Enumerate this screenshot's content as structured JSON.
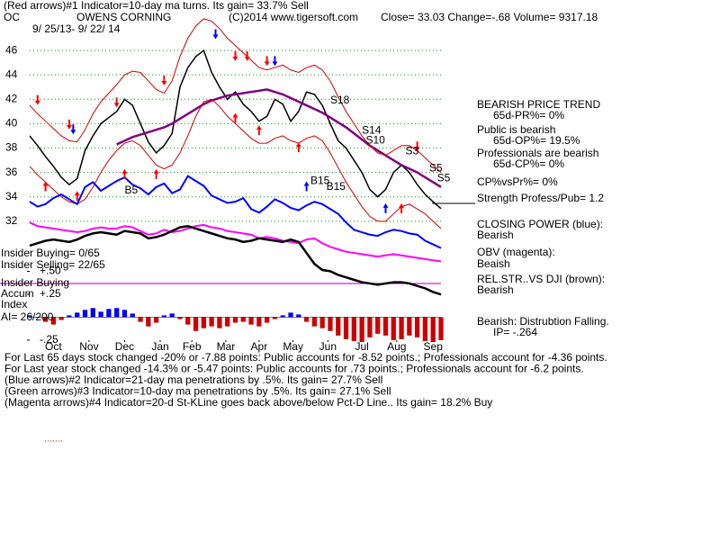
{
  "chart_data": {
    "type": "line",
    "title": "(Red arrows)#1 Indicator=10-day ma turns. Its gain= 33.7% Sell",
    "symbol": "OC",
    "company": "OWENS CORNING",
    "copyright": "(C)2014 www.tigersoft.com",
    "quote": "Close=  33.03  Change=-.68 Volume= 9317.18",
    "date_range": "9/ 25/13- 9/ 22/ 14",
    "xlim": [
      0,
      52
    ],
    "xticks": [
      {
        "value": 3,
        "label": "Oct"
      },
      {
        "value": 7.5,
        "label": "Nov"
      },
      {
        "value": 12,
        "label": "Dec"
      },
      {
        "value": 16.5,
        "label": "Jan"
      },
      {
        "value": 20.5,
        "label": "Feb"
      },
      {
        "value": 24.8,
        "label": "Mar"
      },
      {
        "value": 29,
        "label": "Apr"
      },
      {
        "value": 33.3,
        "label": "May"
      },
      {
        "value": 37.7,
        "label": "Jun"
      },
      {
        "value": 42,
        "label": "Jul"
      },
      {
        "value": 46.4,
        "label": "Aug"
      },
      {
        "value": 51,
        "label": "Sep"
      }
    ],
    "ylim": [
      22.1,
      49.4
    ],
    "yticks": [
      32,
      34,
      36,
      38,
      40,
      42,
      44,
      46
    ],
    "grid": true,
    "grid_color": "#00a000",
    "series": [
      {
        "color": "#000000",
        "width": 1.5,
        "values": [
          39,
          38.2,
          37.3,
          36.5,
          35.6,
          35,
          35.5,
          37.8,
          39,
          40,
          40.5,
          41,
          42,
          41.5,
          40,
          38.5,
          37.6,
          38.2,
          39.2,
          43,
          44.6,
          45.5,
          46,
          44.2,
          43,
          42,
          42.6,
          41.6,
          41,
          40.2,
          40.6,
          42,
          41.6,
          40.2,
          41,
          42.6,
          42.4,
          41.5,
          40,
          38.6,
          38,
          37,
          36,
          34.6,
          34,
          34.6,
          36,
          36.6,
          36,
          35,
          34.2,
          33.6,
          33.03
        ]
      },
      {
        "color": "#800080",
        "width": 2.5,
        "values": [
          null,
          null,
          null,
          null,
          null,
          null,
          null,
          null,
          null,
          null,
          null,
          38.3,
          38.6,
          38.9,
          39.1,
          39.3,
          39.5,
          39.7,
          40,
          40.4,
          40.8,
          41.2,
          41.6,
          41.9,
          42.1,
          42.3,
          42.4,
          42.5,
          42.6,
          42.7,
          42.8,
          42.6,
          42.4,
          42.1,
          41.8,
          41.5,
          41.2,
          40.9,
          40.5,
          40.1,
          39.7,
          39.2,
          38.7,
          38.2,
          37.8,
          37.4,
          37,
          36.6,
          36.3,
          36,
          35.6,
          35.2,
          34.8
        ]
      },
      {
        "color": "#cc0000",
        "width": 1,
        "values": [
          41.5,
          40.8,
          40.2,
          39.6,
          39,
          38.6,
          38.5,
          39.5,
          40.8,
          41.8,
          42.5,
          43.2,
          44,
          44.3,
          44.2,
          43.5,
          42.8,
          42.5,
          43.5,
          45.5,
          47,
          48,
          48.6,
          48.4,
          47.8,
          47,
          46.4,
          45.8,
          45.2,
          44.6,
          44.4,
          44.6,
          44.8,
          44.4,
          44.2,
          44.6,
          44.8,
          44.4,
          43.5,
          42.2,
          41,
          40,
          39,
          38.2,
          37.6,
          37.4,
          37.8,
          38.2,
          38.2,
          37.8,
          37.2,
          36.6,
          36
        ]
      },
      {
        "color": "#cc0000",
        "width": 1,
        "values": [
          36.5,
          35.8,
          35.2,
          34.6,
          34,
          33.6,
          33.4,
          33.8,
          34.8,
          36,
          37,
          37.8,
          38.4,
          38.6,
          38.2,
          37.4,
          36.6,
          36.3,
          36.6,
          37.6,
          39,
          40.6,
          41.8,
          42,
          41.4,
          40.6,
          40,
          39.4,
          38.8,
          38.4,
          38.4,
          38.8,
          39,
          38.6,
          38.4,
          38.8,
          39,
          38.6,
          37.6,
          36.4,
          35.2,
          34.2,
          33.2,
          32.4,
          32,
          32,
          32.6,
          33.2,
          33.4,
          33,
          32.6,
          32,
          31.4
        ]
      },
      {
        "color": "#0000ff",
        "width": 2,
        "values": [
          33.6,
          33.2,
          33.4,
          33.9,
          34.2,
          33.8,
          33.4,
          34.8,
          35.2,
          34.5,
          34.9,
          35.3,
          35.6,
          35,
          34.7,
          34.2,
          34.8,
          35.1,
          34.3,
          34.6,
          35.7,
          35.3,
          34.9,
          34.1,
          33.8,
          33.5,
          33.6,
          33.9,
          33,
          32.7,
          33.2,
          33.8,
          33.5,
          33.1,
          32.9,
          33.3,
          33.6,
          33.4,
          33,
          32.6,
          31.9,
          31.3,
          31.1,
          30.9,
          30.8,
          31.1,
          31.3,
          31.2,
          31,
          30.9,
          30.4,
          30.1,
          29.8
        ]
      },
      {
        "color": "#ff00ff",
        "width": 2,
        "values": [
          31.9,
          31.6,
          31.5,
          31.4,
          31.3,
          31.2,
          31.1,
          31.2,
          31.4,
          31.5,
          31.4,
          31.4,
          31.6,
          31.5,
          31.2,
          30.9,
          31,
          31.3,
          31.1,
          31.2,
          31.4,
          31.6,
          31.7,
          31.5,
          31.4,
          31.2,
          31.1,
          31,
          30.9,
          30.6,
          30.7,
          30.6,
          30.4,
          30.3,
          30.2,
          30.5,
          30.6,
          30.2,
          29.9,
          29.7,
          29.5,
          29.4,
          29.3,
          29.2,
          29.1,
          29.2,
          29.3,
          29.2,
          29.1,
          29,
          28.9,
          28.8,
          28.7
        ]
      },
      {
        "color": "#000000",
        "width": 2.5,
        "values": [
          30,
          30.2,
          30.4,
          30.5,
          30.4,
          30.3,
          30.5,
          30.8,
          31,
          31.1,
          31,
          30.9,
          31.2,
          31.1,
          31,
          30.6,
          30.7,
          30.9,
          31.2,
          31.5,
          31.6,
          31.4,
          31.2,
          31,
          30.8,
          30.6,
          30.5,
          30.3,
          30.4,
          30.6,
          30.5,
          30.4,
          30.3,
          30.5,
          30.3,
          29.4,
          28.5,
          28,
          27.9,
          27.6,
          27.4,
          27.2,
          27,
          26.9,
          26.8,
          26.9,
          27,
          27,
          26.9,
          26.7,
          26.5,
          26.2,
          26
        ]
      }
    ],
    "accum": {
      "axis": "y2",
      "pos_color": "#0000ff",
      "neg_color": "#cc0000",
      "values": [
        0.02,
        0,
        -0.05,
        -0.08,
        -0.03,
        0.02,
        0.05,
        0.08,
        0.1,
        0.06,
        0.09,
        0.1,
        0.08,
        0.04,
        -0.05,
        -0.1,
        -0.06,
        0.02,
        0.04,
        -0.02,
        -0.08,
        -0.15,
        -0.12,
        -0.1,
        -0.12,
        -0.1,
        -0.06,
        -0.05,
        -0.08,
        -0.1,
        -0.06,
        -0.02,
        0.02,
        0.05,
        0.03,
        -0.05,
        -0.1,
        -0.12,
        -0.15,
        -0.2,
        -0.24,
        -0.26,
        -0.27,
        -0.22,
        -0.18,
        -0.2,
        -0.25,
        -0.24,
        -0.2,
        -0.22,
        -0.26,
        -0.27,
        -0.25
      ]
    },
    "y2lim": [
      -0.27,
      3.358
    ],
    "y2ticks": [
      {
        "value": 0.5,
        "label": "+.50"
      },
      {
        "value": 0.25,
        "label": "+.25"
      },
      {
        "value": -0.25,
        "label": "-.25"
      }
    ],
    "arrows": [
      {
        "x": 1,
        "y": 41.6,
        "dir": "down",
        "color": "#ff0000"
      },
      {
        "x": 5,
        "y": 39.6,
        "dir": "down",
        "color": "#ff0000"
      },
      {
        "x": 11,
        "y": 41.4,
        "dir": "down",
        "color": "#ff0000"
      },
      {
        "x": 17,
        "y": 43.2,
        "dir": "down",
        "color": "#ff0000"
      },
      {
        "x": 26,
        "y": 45.2,
        "dir": "down",
        "color": "#ff0000"
      },
      {
        "x": 27.5,
        "y": 45.2,
        "dir": "down",
        "color": "#ff0000"
      },
      {
        "x": 30,
        "y": 44.8,
        "dir": "down",
        "color": "#ff0000"
      },
      {
        "x": 49,
        "y": 37.8,
        "dir": "down",
        "color": "#ff0000"
      },
      {
        "x": 2,
        "y": 35.2,
        "dir": "up",
        "color": "#ff0000"
      },
      {
        "x": 6,
        "y": 34.4,
        "dir": "up",
        "color": "#ff0000"
      },
      {
        "x": 12,
        "y": 36.2,
        "dir": "up",
        "color": "#ff0000"
      },
      {
        "x": 16,
        "y": 36.2,
        "dir": "up",
        "color": "#ff0000"
      },
      {
        "x": 26,
        "y": 40.8,
        "dir": "up",
        "color": "#ff0000"
      },
      {
        "x": 29,
        "y": 39.8,
        "dir": "up",
        "color": "#ff0000"
      },
      {
        "x": 34,
        "y": 38.4,
        "dir": "up",
        "color": "#ff0000"
      },
      {
        "x": 47,
        "y": 33.4,
        "dir": "up",
        "color": "#ff0000"
      },
      {
        "x": 5.5,
        "y": 39.2,
        "dir": "down",
        "color": "#0000ff"
      },
      {
        "x": 23.5,
        "y": 47,
        "dir": "down",
        "color": "#0000ff"
      },
      {
        "x": 31,
        "y": 44.8,
        "dir": "down",
        "color": "#0000ff"
      },
      {
        "x": 35,
        "y": 35.2,
        "dir": "up",
        "color": "#0000ff"
      },
      {
        "x": 45,
        "y": 33.4,
        "dir": "up",
        "color": "#0000ff"
      }
    ],
    "annotations": [
      {
        "text": "S18",
        "x": 38,
        "y": 41.9
      },
      {
        "text": "S14",
        "x": 42,
        "y": 39.4
      },
      {
        "text": "S10",
        "x": 42.5,
        "y": 38.6
      },
      {
        "text": "S3",
        "x": 47.5,
        "y": 37.7
      },
      {
        "text": "S5",
        "x": 50.5,
        "y": 36.3
      },
      {
        "text": "S5",
        "x": 51.5,
        "y": 35.5
      },
      {
        "text": "B15",
        "x": 35.5,
        "y": 35.3
      },
      {
        "text": "B15",
        "x": 37.5,
        "y": 34.8
      },
      {
        "text": "B5",
        "x": 12,
        "y": 34.5
      }
    ],
    "insider": [
      "Insider Buying= 0/65",
      "Insider Selling= 22/65",
      "Insider Buying"
    ],
    "accum_labels": [
      "Accum",
      "Index",
      "AI= 26/200"
    ],
    "status": [
      {
        "text": "BEARISH PRICE TREND",
        "indent": false
      },
      {
        "text": "65d-PR%= 0%",
        "indent": true
      },
      {
        "text": "Public is bearish",
        "indent": false
      },
      {
        "text": "65d-OP%= 19.5%",
        "indent": true
      },
      {
        "text": "Professionals are bearish",
        "indent": false
      },
      {
        "text": "65d-CP%= 0%",
        "indent": true
      },
      {
        "text": "CP%vsPr%=  0%",
        "indent": false
      },
      {
        "text": "Strength Profess/Pub= 1.2",
        "indent": false
      },
      {
        "text": "CLOSING POWER (blue):",
        "indent": false
      },
      {
        "text": "Bearish",
        "indent": false
      },
      {
        "text": "OBV (magenta):",
        "indent": false
      },
      {
        "text": "Beaish",
        "indent": false
      },
      {
        "text": "REL.STR..VS DJI (brown):",
        "indent": false
      },
      {
        "text": "Bearish",
        "indent": false
      },
      {
        "text": "Bearish:  Distrubtion Falling.",
        "indent": false
      },
      {
        "text": "IP= -.264",
        "indent": true
      }
    ],
    "footer": [
      "For Last 65 days stock changed -20% or -7.88 points:  Public accounts for -8.52 points.;  Professionals account for -4.36 points.",
      "For Last year stock changed -14.3% or -5.47 points:  Public accounts for  .73 points.;  Professionals account for -6.2 points.",
      "(Blue arrows)#2 Indicator=21-day ma penetrations by .5%. Its gain= 27.7% Sell",
      "(Green arrows)#3 Indicator=10-day ma penetrations by .5%. Its gain= 27.1% Sell",
      "(Magenta arrows)#4 Indicator=20-d St-KLine goes back above/below Pct-D Line.. Its gain= 18.2% Buy"
    ]
  }
}
